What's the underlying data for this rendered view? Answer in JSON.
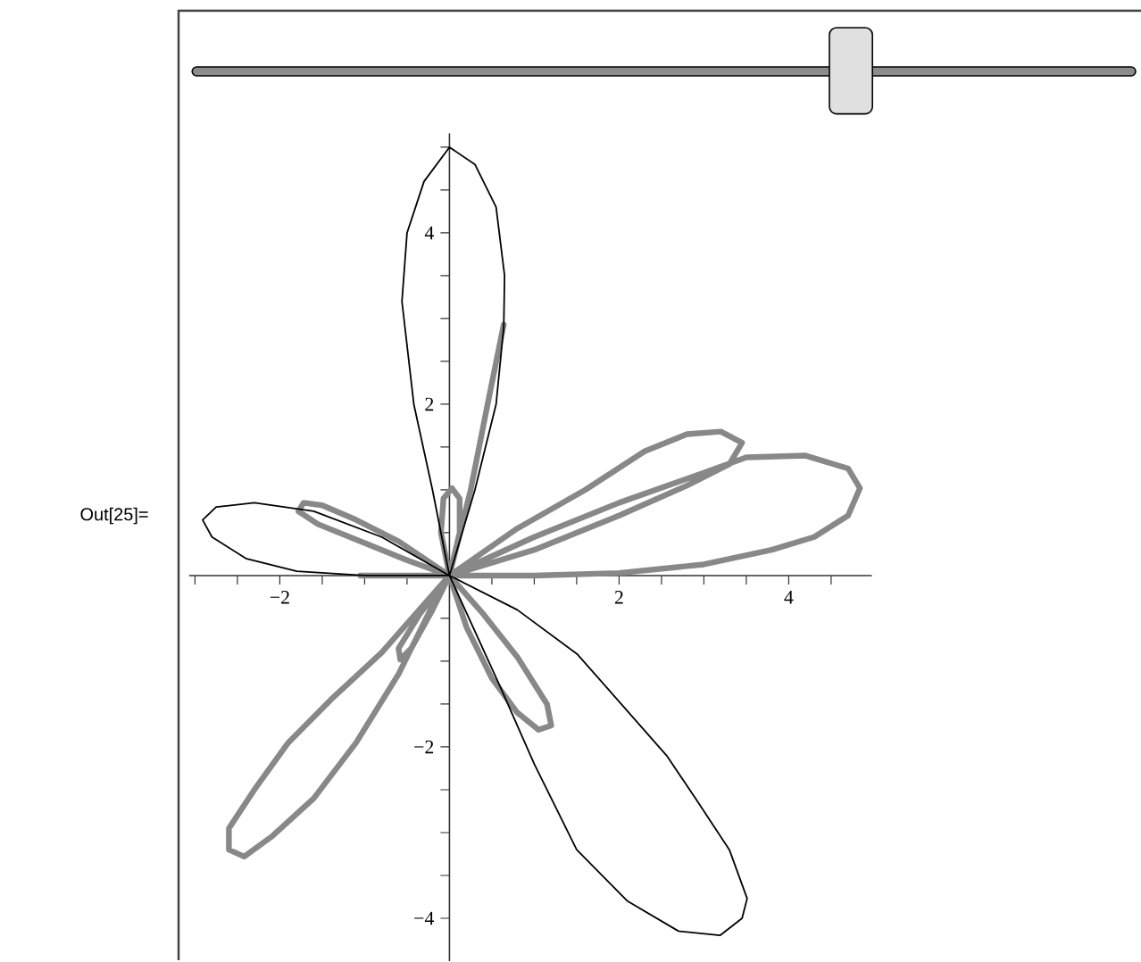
{
  "chart_data": {
    "type": "line",
    "series": [
      {
        "color": "#000000",
        "x": [
          0,
          -0.2,
          -0.42,
          -0.56,
          -0.5,
          -0.3,
          0,
          0.3,
          0.55,
          0.65,
          0.64,
          0.55,
          0.3,
          0,
          -0.8,
          -1.6,
          -2.3,
          -2.75,
          -2.91,
          -2.8,
          -2.4,
          -1.8,
          -1.0,
          0,
          0.6,
          1.0,
          1.5,
          2.1,
          2.7,
          3.19,
          3.45,
          3.51,
          3.3,
          2.9,
          2.56,
          1.51,
          0.8,
          0,
          -0.2
        ],
        "values": [
          0,
          1,
          2,
          3.2,
          4,
          4.6,
          5,
          4.8,
          4.3,
          3.5,
          2.9,
          2,
          1,
          0,
          0.45,
          0.75,
          0.85,
          0.8,
          0.65,
          0.45,
          0.2,
          0.05,
          0,
          0,
          -1.3,
          -2.2,
          -3.2,
          -3.8,
          -4.15,
          -4.2,
          -4.0,
          -3.77,
          -3.2,
          -2.6,
          -2.1,
          -0.92,
          -0.4,
          0,
          1
        ]
      },
      {
        "color": "#888888",
        "x": [
          -1.05,
          0,
          1,
          2,
          3,
          3.5,
          4.2,
          4.7,
          4.84,
          4.7,
          4.3,
          3.8,
          3,
          2,
          1,
          0,
          0.8,
          1.6,
          2.3,
          2.8,
          3.2,
          3.45,
          3.3,
          2.8,
          2,
          1,
          0,
          -0.6,
          -1.1,
          -1.5,
          -1.72,
          -1.78,
          -1.55,
          -1.0,
          -0.5,
          0,
          -0.8,
          -1.4,
          -1.9,
          -2.3,
          -2.6,
          -2.6,
          -2.42,
          -2.1,
          -1.6,
          -1.1,
          -0.6,
          -0.2,
          0,
          -0.35,
          -0.6,
          -0.58,
          -0.45,
          -0.2,
          0,
          0.2,
          0.5,
          0.8,
          1.05,
          1.2,
          1.15,
          0.8,
          0.4,
          0,
          -0.1,
          -0.07,
          0.03,
          0.12,
          0.12,
          0,
          0.25,
          0.45,
          0.64
        ],
        "values": [
          0,
          0,
          0.45,
          0.85,
          1.2,
          1.38,
          1.4,
          1.25,
          1.02,
          0.7,
          0.45,
          0.3,
          0.13,
          0.03,
          0,
          0,
          0.55,
          1.0,
          1.45,
          1.65,
          1.68,
          1.55,
          1.3,
          1.05,
          0.7,
          0.3,
          0,
          0.4,
          0.65,
          0.82,
          0.85,
          0.75,
          0.6,
          0.38,
          0.18,
          0,
          -0.9,
          -1.45,
          -1.95,
          -2.5,
          -2.95,
          -3.2,
          -3.28,
          -3.05,
          -2.6,
          -1.95,
          -1.15,
          -0.35,
          0,
          -0.45,
          -0.85,
          -0.98,
          -0.85,
          -0.4,
          0,
          -0.6,
          -1.2,
          -1.6,
          -1.8,
          -1.75,
          -1.5,
          -0.95,
          -0.45,
          0,
          0.5,
          0.9,
          1.02,
          0.9,
          0.5,
          0,
          1.0,
          2.0,
          2.93
        ]
      }
    ],
    "xlim": [
      -3.07,
      4.98
    ],
    "ylim": [
      -4.5,
      5.16
    ],
    "xticks": [
      {
        "value": -3,
        "label": null
      },
      {
        "value": -2.5,
        "label": null
      },
      {
        "value": -2,
        "label": "−2"
      },
      {
        "value": -1.5,
        "label": null
      },
      {
        "value": -1,
        "label": null
      },
      {
        "value": -0.5,
        "label": null
      },
      {
        "value": 0.5,
        "label": null
      },
      {
        "value": 1,
        "label": null
      },
      {
        "value": 1.5,
        "label": null
      },
      {
        "value": 2,
        "label": "2"
      },
      {
        "value": 2.5,
        "label": null
      },
      {
        "value": 3,
        "label": null
      },
      {
        "value": 3.5,
        "label": null
      },
      {
        "value": 4,
        "label": "4"
      },
      {
        "value": 4.5,
        "label": null
      }
    ],
    "yticks": [
      {
        "value": -4,
        "label": "−4"
      },
      {
        "value": -3.5,
        "label": null
      },
      {
        "value": -3,
        "label": null
      },
      {
        "value": -2.5,
        "label": null
      },
      {
        "value": -2,
        "label": "−2"
      },
      {
        "value": -1.5,
        "label": null
      },
      {
        "value": -1,
        "label": null
      },
      {
        "value": -0.5,
        "label": null
      },
      {
        "value": 0.5,
        "label": null
      },
      {
        "value": 1,
        "label": null
      },
      {
        "value": 1.5,
        "label": null
      },
      {
        "value": 2,
        "label": "2"
      },
      {
        "value": 2.5,
        "label": null
      },
      {
        "value": 3,
        "label": null
      },
      {
        "value": 3.5,
        "label": null
      },
      {
        "value": 4,
        "label": "4"
      },
      {
        "value": 4.5,
        "label": null
      },
      {
        "value": 5,
        "label": null
      }
    ],
    "annotations": [
      "Out[25]="
    ]
  }
}
